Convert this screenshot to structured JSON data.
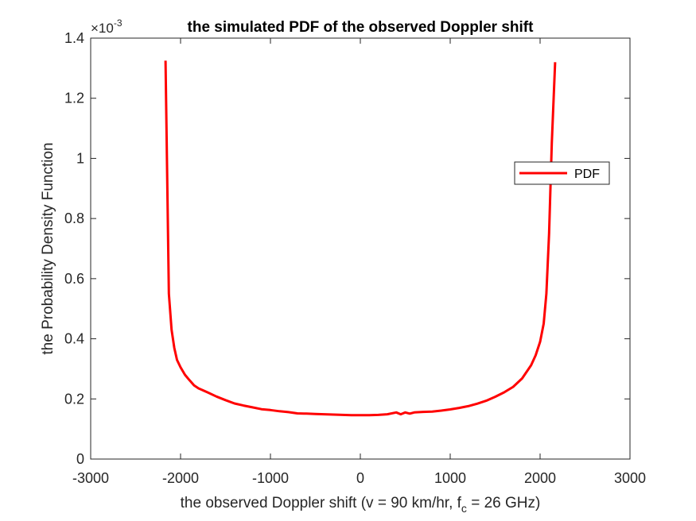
{
  "chart_data": {
    "type": "line",
    "title": "the simulated PDF of the observed Doppler shift",
    "xlabel": {
      "prefix": "the observed Doppler shift (v = 90 km/hr, f",
      "subscript": "c",
      "suffix": " = 26 GHz)"
    },
    "ylabel": "the Probability Density Function",
    "y_exponent": {
      "base": "×10",
      "power": "-3"
    },
    "xlim": [
      -3000,
      3000
    ],
    "ylim": [
      0,
      1.4
    ],
    "x_ticks": [
      -3000,
      -2000,
      -1000,
      0,
      1000,
      2000,
      3000
    ],
    "x_tick_labels": [
      "-3000",
      "-2000",
      "-1000",
      "0",
      "1000",
      "2000",
      "3000"
    ],
    "y_ticks": [
      0,
      0.2,
      0.4,
      0.6,
      0.8,
      1.0,
      1.2,
      1.4
    ],
    "y_tick_labels": [
      "0",
      "0.2",
      "0.4",
      "0.6",
      "0.8",
      "1",
      "1.2",
      "1.4"
    ],
    "grid": false,
    "legend": {
      "position": "right",
      "entries": [
        "PDF"
      ]
    },
    "series": [
      {
        "name": "PDF",
        "color": "#ff0000",
        "x": [
          -2167,
          -2130,
          -2100,
          -2070,
          -2040,
          -2000,
          -1950,
          -1900,
          -1850,
          -1800,
          -1700,
          -1600,
          -1500,
          -1400,
          -1300,
          -1200,
          -1100,
          -1000,
          -900,
          -800,
          -700,
          -600,
          -500,
          -400,
          -300,
          -200,
          -100,
          0,
          100,
          200,
          300,
          400,
          450,
          500,
          550,
          600,
          700,
          800,
          900,
          1000,
          1100,
          1200,
          1300,
          1400,
          1500,
          1600,
          1700,
          1800,
          1900,
          1950,
          2000,
          2040,
          2070,
          2100,
          2130,
          2167
        ],
        "y": [
          1.325,
          0.55,
          0.43,
          0.37,
          0.33,
          0.305,
          0.28,
          0.262,
          0.245,
          0.235,
          0.222,
          0.208,
          0.196,
          0.185,
          0.178,
          0.172,
          0.166,
          0.163,
          0.159,
          0.156,
          0.152,
          0.151,
          0.15,
          0.149,
          0.148,
          0.147,
          0.146,
          0.146,
          0.146,
          0.147,
          0.149,
          0.155,
          0.149,
          0.155,
          0.151,
          0.155,
          0.157,
          0.158,
          0.161,
          0.165,
          0.17,
          0.176,
          0.184,
          0.194,
          0.207,
          0.222,
          0.24,
          0.268,
          0.312,
          0.345,
          0.39,
          0.45,
          0.55,
          0.75,
          1.05,
          1.32
        ]
      }
    ]
  }
}
